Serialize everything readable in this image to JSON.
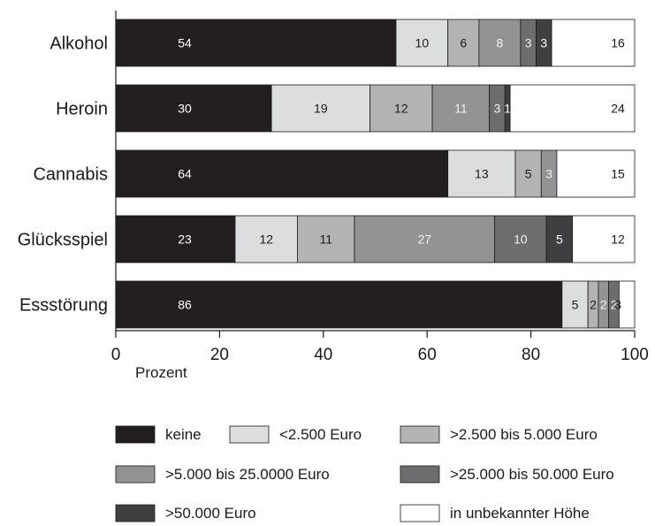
{
  "chart_data": {
    "type": "bar",
    "orientation": "horizontal",
    "stacked": true,
    "categories": [
      "Alkohol",
      "Heroin",
      "Cannabis",
      "Glücksspiel",
      "Essstörung"
    ],
    "series": [
      {
        "name": "keine",
        "color": "#231f20",
        "values": [
          54,
          30,
          64,
          23,
          86
        ]
      },
      {
        "name": "<2.500 Euro",
        "color": "#dcdddf",
        "values": [
          10,
          19,
          13,
          12,
          5
        ]
      },
      {
        "name": ">2.500 bis 5.000 Euro",
        "color": "#b3b3b5",
        "values": [
          6,
          12,
          5,
          11,
          2
        ]
      },
      {
        "name": ">5.000 bis 25.0000 Euro",
        "color": "#939395",
        "values": [
          8,
          11,
          3,
          27,
          2
        ]
      },
      {
        "name": ">25.000 bis 50.000 Euro",
        "color": "#6d6d6f",
        "values": [
          3,
          3,
          0,
          10,
          2
        ]
      },
      {
        "name": ">50.000 Euro",
        "color": "#3f3f41",
        "values": [
          3,
          1,
          0,
          5,
          0
        ]
      },
      {
        "name": "in unbekannter Höhe",
        "color": "#ffffff",
        "values": [
          16,
          24,
          15,
          12,
          3
        ]
      }
    ],
    "value_labels": [
      [
        "54",
        "10",
        "6",
        "8",
        "3",
        "3",
        "16"
      ],
      [
        "30",
        "19",
        "12",
        "11",
        "3",
        "1",
        "24"
      ],
      [
        "64",
        "13",
        "5",
        "3",
        "",
        "",
        "15"
      ],
      [
        "23",
        "12",
        "11",
        "27",
        "10",
        "5",
        "12"
      ],
      [
        "86",
        "5",
        "2",
        "2",
        "2",
        "",
        "3"
      ]
    ],
    "xlabel": "Prozent",
    "xlim": [
      0,
      100
    ],
    "xticks": [
      0,
      20,
      40,
      60,
      80,
      100
    ],
    "grid": false,
    "legend_position": "bottom"
  }
}
